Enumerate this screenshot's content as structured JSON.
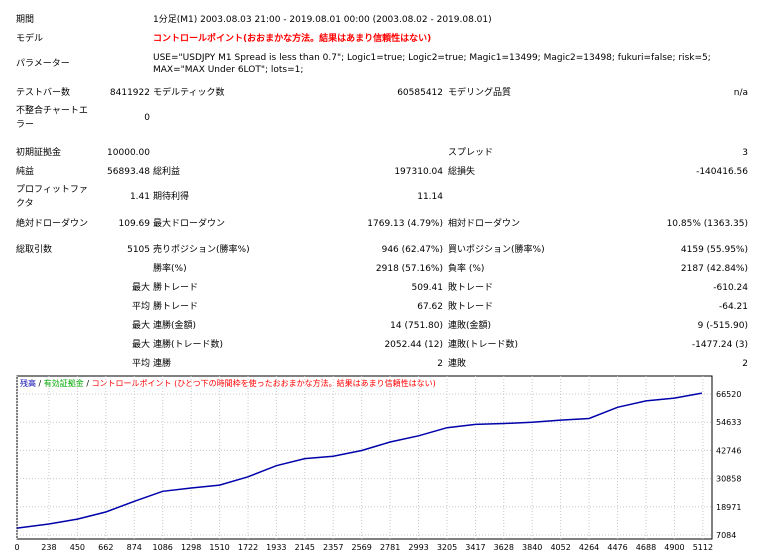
{
  "header": {
    "period_label": "期間",
    "period_value": "1分足(M1) 2003.08.03 21:00 - 2019.08.01 00:00 (2003.08.02 - 2019.08.01)",
    "model_label": "モデル",
    "model_value": "コントロールポイント(おおまかな方法。結果はあまり信頼性はない)",
    "params_label": "パラメーター",
    "params_line1": "USE=\"USDJPY M1 Spread is less than 0.7\"; Logic1=true; Logic2=true; Magic1=13499; Magic2=13498; fukuri=false; risk=5;",
    "params_line2": "MAX=\"MAX Under 6LOT\"; lots=1;"
  },
  "stats": {
    "bars_label": "テストバー数",
    "bars_value": "8411922",
    "ticks_label": "モデルティック数",
    "ticks_value": "60585412",
    "quality_label": "モデリング品質",
    "quality_value": "n/a",
    "errors_label_1": "不整合チャートエ",
    "errors_label_2": "ラー",
    "errors_value": "0",
    "deposit_label": "初期証拠金",
    "deposit_value": "10000.00",
    "spread_label": "スプレッド",
    "spread_value": "3",
    "net_label": "純益",
    "net_value": "56893.48",
    "gross_profit_label": "総利益",
    "gross_profit_value": "197310.04",
    "gross_loss_label": "総損失",
    "gross_loss_value": "-140416.56",
    "pf_label_1": "プロフィットファ",
    "pf_label_2": "クタ",
    "pf_value": "1.41",
    "expected_label": "期待利得",
    "expected_value": "11.14",
    "abs_dd_label": "絶対ドローダウン",
    "abs_dd_value": "109.69",
    "max_dd_label": "最大ドローダウン",
    "max_dd_value": "1769.13 (4.79%)",
    "rel_dd_label": "相対ドローダウン",
    "rel_dd_value": "10.85% (1363.35)",
    "trades_label": "総取引数",
    "trades_value": "5105",
    "short_label": "売りポジション(勝率%)",
    "short_value": "946 (62.47%)",
    "long_label": "買いポジション(勝率%)",
    "long_value": "4159 (55.95%)",
    "winrate_label": "勝率(%)",
    "winrate_value": "2918 (57.16%)",
    "lossrate_label": "負率 (%)",
    "lossrate_value": "2187 (42.84%)",
    "max_label": "最大",
    "avg_label": "平均",
    "max_win_label": "勝トレード",
    "max_win_value": "509.41",
    "max_loss_label": "敗トレード",
    "max_loss_value": "-610.24",
    "avg_win_label": "勝トレード",
    "avg_win_value": "67.62",
    "avg_loss_label": "敗トレード",
    "avg_loss_value": "-64.21",
    "consec_wins_label": "連勝(金額)",
    "consec_wins_value": "14 (751.80)",
    "consec_losses_label": "連敗(金額)",
    "consec_losses_value": "9 (-515.90)",
    "consec_profit_label": "連勝(トレード数)",
    "consec_profit_value": "2052.44 (12)",
    "consec_loss_label": "連敗(トレード数)",
    "consec_loss_value": "-1477.24 (3)",
    "avg_consec_wins_label": "連勝",
    "avg_consec_wins_value": "2",
    "avg_consec_losses_label": "連敗",
    "avg_consec_losses_value": "2"
  },
  "chart_legend": {
    "balance": "残高",
    "sep1": " / ",
    "volume": "有効証拠金",
    "sep2": " / ",
    "model": "コントロールポイント (ひとつ下の時間枠を使ったおおまかな方法。結果はあまり信頼性はない)"
  },
  "colors": {
    "balance": "#0000aa",
    "volume": "#00aa00",
    "model": "#ff0000"
  },
  "chart_data": {
    "type": "line",
    "x_ticks": [
      "0",
      "238",
      "450",
      "662",
      "874",
      "1086",
      "1298",
      "1510",
      "1722",
      "1933",
      "2145",
      "2357",
      "2569",
      "2781",
      "2993",
      "3205",
      "3417",
      "3628",
      "3840",
      "4052",
      "4264",
      "4476",
      "4688",
      "4900",
      "5112"
    ],
    "y_ticks": [
      "66520",
      "54633",
      "42746",
      "30858",
      "18971",
      "7084"
    ],
    "ylim": [
      7084,
      66520
    ],
    "xlim": [
      0,
      5180
    ],
    "series": [
      {
        "name": "残高",
        "x": [
          0,
          238,
          450,
          662,
          874,
          1086,
          1298,
          1510,
          1722,
          1933,
          2145,
          2357,
          2569,
          2781,
          2993,
          3205,
          3417,
          3628,
          3840,
          4052,
          4264,
          4476,
          4688,
          4900,
          5105
        ],
        "values": [
          10000,
          11700,
          13800,
          16800,
          21300,
          25500,
          26900,
          28100,
          31600,
          36300,
          39300,
          40300,
          42700,
          46300,
          48900,
          52300,
          53700,
          54100,
          54600,
          55500,
          56200,
          60900,
          63600,
          64800,
          66890
        ]
      }
    ]
  }
}
